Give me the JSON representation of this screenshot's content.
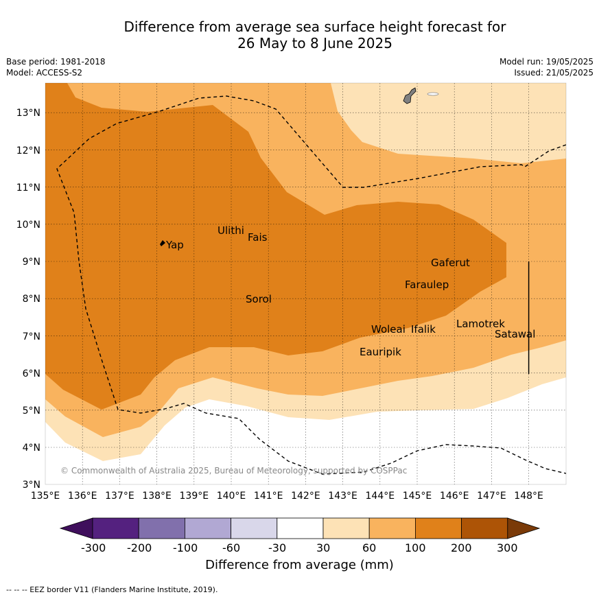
{
  "header": {
    "title_line1": "Difference from average sea surface height forecast for",
    "title_line2": "26 May to 8 June 2025",
    "base_period": "Base period: 1981-2018",
    "model": "Model: ACCESS-S2",
    "model_run": "Model run: 19/05/2025",
    "issued": "Issued: 21/05/2025"
  },
  "map": {
    "lon_ticks": [
      "135°E",
      "136°E",
      "137°E",
      "138°E",
      "139°E",
      "140°E",
      "141°E",
      "142°E",
      "143°E",
      "144°E",
      "145°E",
      "146°E",
      "147°E",
      "148°E"
    ],
    "lat_ticks": [
      "3°N",
      "4°N",
      "5°N",
      "6°N",
      "7°N",
      "8°N",
      "9°N",
      "10°N",
      "11°N",
      "12°N",
      "13°N"
    ],
    "places": [
      {
        "name": "Yap",
        "lon": 138.2,
        "lat": 9.5
      },
      {
        "name": "Ulithi",
        "lon": 139.6,
        "lat": 9.9
      },
      {
        "name": "Fais",
        "lon": 140.4,
        "lat": 9.7
      },
      {
        "name": "Sorol",
        "lon": 140.35,
        "lat": 8.0
      },
      {
        "name": "Gaferut",
        "lon": 145.3,
        "lat": 9.1
      },
      {
        "name": "Faraulep",
        "lon": 144.6,
        "lat": 8.45
      },
      {
        "name": "Lamotrek",
        "lon": 146.0,
        "lat": 7.35
      },
      {
        "name": "Satawal",
        "lon": 147.0,
        "lat": 7.1
      },
      {
        "name": "Woleai",
        "lon": 143.8,
        "lat": 7.25
      },
      {
        "name": "Ifalik",
        "lon": 144.5,
        "lat": 7.25
      },
      {
        "name": "Eauripik",
        "lon": 143.2,
        "lat": 6.65
      }
    ],
    "copyright": "© Commonwealth of Australia 2025, Bureau of Meteorology, supported by COSPPac",
    "colors": {
      "band_30_60": "#fde2b6",
      "band_60_100": "#f9b35e",
      "band_100_200": "#e0811a",
      "land": "#808080"
    }
  },
  "colorbar": {
    "title": "Difference from average (mm)",
    "ticks": [
      "-300",
      "-200",
      "-100",
      "-60",
      "-30",
      "30",
      "60",
      "100",
      "200",
      "300"
    ],
    "colors": [
      "#3f0f5c",
      "#54217f",
      "#8170ac",
      "#b1a8d3",
      "#d9d7ea",
      "#ffffff",
      "#fde2b6",
      "#f9b35e",
      "#e0811a",
      "#ad5406",
      "#7a3a08"
    ]
  },
  "footnote": "--  --  -- EEZ border V11 (Flanders Marine Institute, 2019)."
}
